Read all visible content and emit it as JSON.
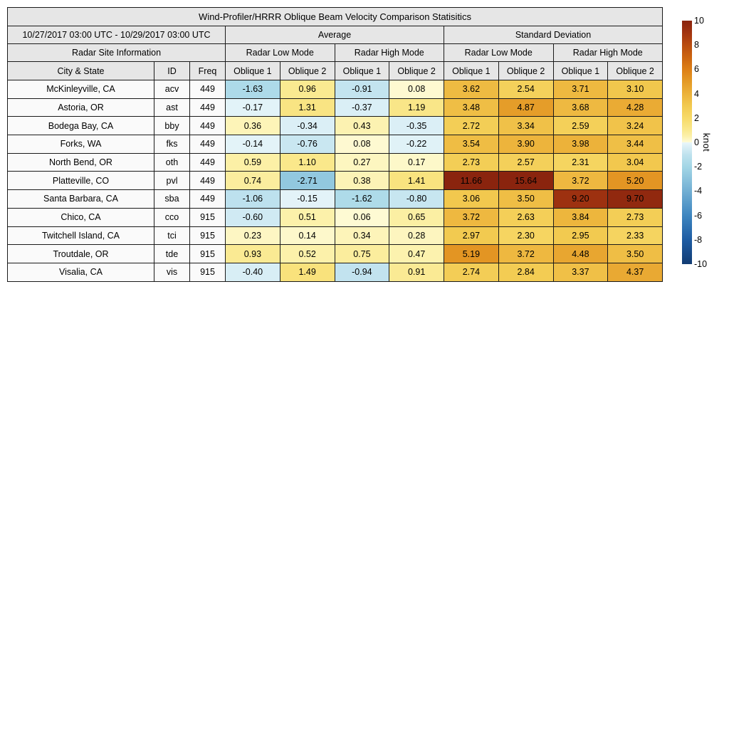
{
  "chart_data": {
    "type": "table",
    "title": "Wind-Profiler/HRRR Oblique Beam Velocity Comparison Statisitics",
    "header": {
      "date_range": "10/27/2017 03:00 UTC - 10/29/2017 03:00 UTC",
      "groups": [
        "Average",
        "Standard Deviation"
      ],
      "site_info": "Radar Site Information",
      "modes": [
        "Radar Low Mode",
        "Radar High Mode",
        "Radar Low Mode",
        "Radar High Mode"
      ],
      "columns": [
        "City & State",
        "ID",
        "Freq",
        "Oblique 1",
        "Oblique 2",
        "Oblique 1",
        "Oblique 2",
        "Oblique 1",
        "Oblique 2",
        "Oblique 1",
        "Oblique 2"
      ]
    },
    "rows": [
      {
        "city": "McKinleyville, CA",
        "id": "acv",
        "freq": "449",
        "values": [
          -1.63,
          0.96,
          -0.91,
          0.08,
          3.62,
          2.54,
          3.71,
          3.1
        ]
      },
      {
        "city": "Astoria, OR",
        "id": "ast",
        "freq": "449",
        "values": [
          -0.17,
          1.31,
          -0.37,
          1.19,
          3.48,
          4.87,
          3.68,
          4.28
        ]
      },
      {
        "city": "Bodega Bay, CA",
        "id": "bby",
        "freq": "449",
        "values": [
          0.36,
          -0.34,
          0.43,
          -0.35,
          2.72,
          3.34,
          2.59,
          3.24
        ]
      },
      {
        "city": "Forks, WA",
        "id": "fks",
        "freq": "449",
        "values": [
          -0.14,
          -0.76,
          0.08,
          -0.22,
          3.54,
          3.9,
          3.98,
          3.44
        ]
      },
      {
        "city": "North Bend, OR",
        "id": "oth",
        "freq": "449",
        "values": [
          0.59,
          1.1,
          0.27,
          0.17,
          2.73,
          2.57,
          2.31,
          3.04
        ]
      },
      {
        "city": "Platteville, CO",
        "id": "pvl",
        "freq": "449",
        "values": [
          0.74,
          -2.71,
          0.38,
          1.41,
          11.66,
          15.64,
          3.72,
          5.2
        ]
      },
      {
        "city": "Santa Barbara, CA",
        "id": "sba",
        "freq": "449",
        "values": [
          -1.06,
          -0.15,
          -1.62,
          -0.8,
          3.06,
          3.5,
          9.2,
          9.7
        ]
      },
      {
        "city": "Chico, CA",
        "id": "cco",
        "freq": "915",
        "values": [
          -0.6,
          0.51,
          0.06,
          0.65,
          3.72,
          2.63,
          3.84,
          2.73
        ]
      },
      {
        "city": "Twitchell Island, CA",
        "id": "tci",
        "freq": "915",
        "values": [
          0.23,
          0.14,
          0.34,
          0.28,
          2.97,
          2.3,
          2.95,
          2.33
        ]
      },
      {
        "city": "Troutdale, OR",
        "id": "tde",
        "freq": "915",
        "values": [
          0.93,
          0.52,
          0.75,
          0.47,
          5.19,
          3.72,
          4.48,
          3.5
        ]
      },
      {
        "city": "Visalia, CA",
        "id": "vis",
        "freq": "915",
        "values": [
          -0.4,
          1.49,
          -0.94,
          0.91,
          2.74,
          2.84,
          3.37,
          4.37
        ]
      }
    ],
    "colorbar": {
      "unit": "knot",
      "min": -10,
      "max": 10,
      "ticks": [
        "10",
        "8",
        "6",
        "4",
        "2",
        "0",
        "-2",
        "-4",
        "-6",
        "-8",
        "-10"
      ],
      "stops": [
        [
          -10,
          "#123c73"
        ],
        [
          -8,
          "#1e5ca3"
        ],
        [
          -6,
          "#3e86c0"
        ],
        [
          -4,
          "#72afd3"
        ],
        [
          -2,
          "#a3d6e6"
        ],
        [
          -1,
          "#bfe2ee"
        ],
        [
          -0.01,
          "#e9f6fa"
        ],
        [
          0,
          "#fefbd8"
        ],
        [
          0.5,
          "#fcf1ab"
        ],
        [
          1,
          "#fae98f"
        ],
        [
          2,
          "#f7da68"
        ],
        [
          3,
          "#f2c94f"
        ],
        [
          4,
          "#ecb23a"
        ],
        [
          5,
          "#e49a26"
        ],
        [
          6,
          "#dd7f16"
        ],
        [
          7,
          "#cc6410"
        ],
        [
          8,
          "#b94c10"
        ],
        [
          9,
          "#a23410"
        ],
        [
          10,
          "#8a240e"
        ]
      ]
    }
  }
}
